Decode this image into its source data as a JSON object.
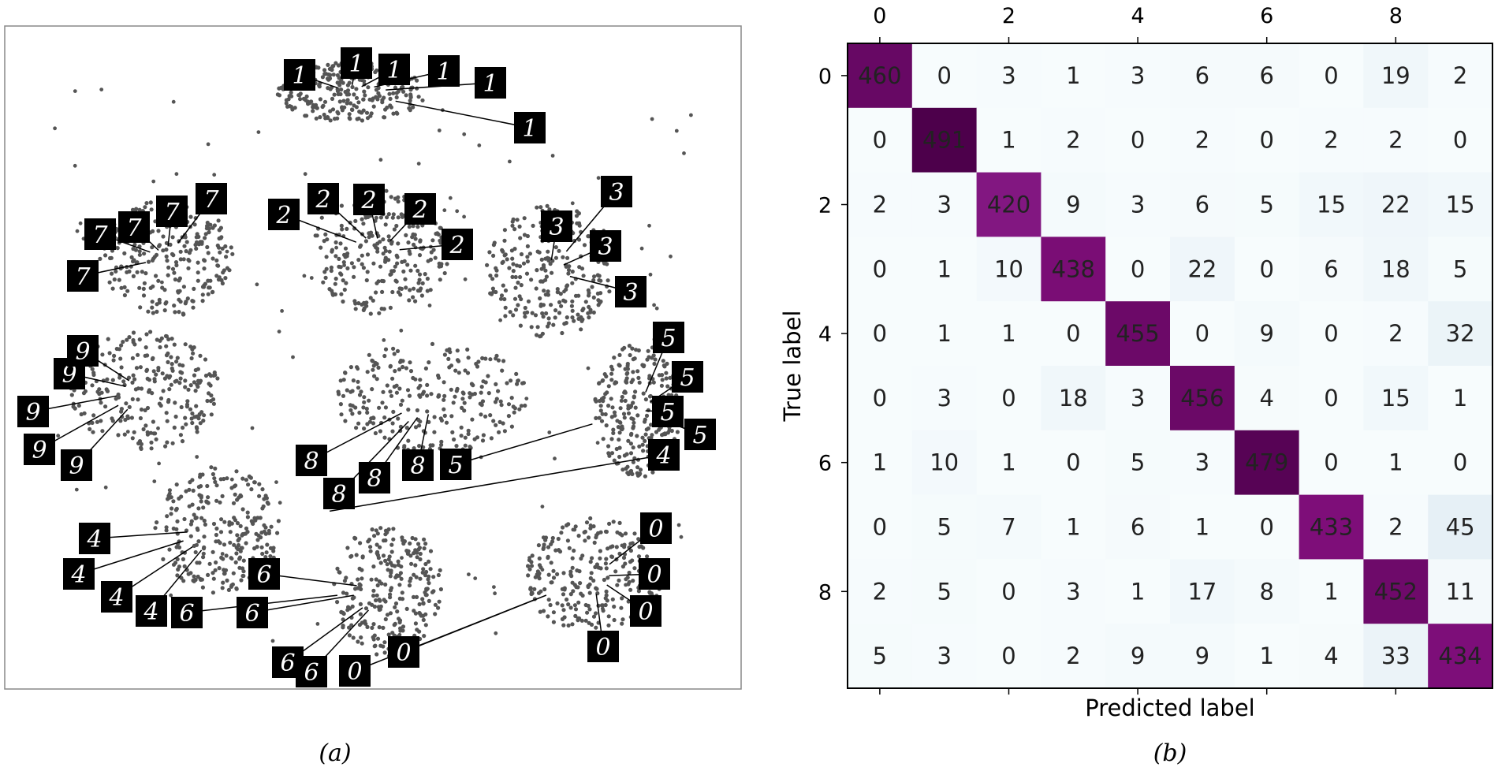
{
  "figure": {
    "caption_a": "(a)",
    "caption_b": "(b)"
  },
  "chart_data": [
    {
      "panel": "(a)",
      "type": "scatter",
      "title": "",
      "xlabel": "",
      "ylabel": "",
      "grid": false,
      "point_color": "#555555",
      "clusters": [
        {
          "label": "1",
          "x": 0.47,
          "y": 0.1
        },
        {
          "label": "7",
          "x": 0.22,
          "y": 0.35
        },
        {
          "label": "2",
          "x": 0.51,
          "y": 0.34
        },
        {
          "label": "3",
          "x": 0.74,
          "y": 0.37
        },
        {
          "label": "9",
          "x": 0.19,
          "y": 0.55
        },
        {
          "label": "8",
          "x": 0.58,
          "y": 0.56
        },
        {
          "label": "5",
          "x": 0.86,
          "y": 0.58
        },
        {
          "label": "4",
          "x": 0.29,
          "y": 0.76
        },
        {
          "label": "6",
          "x": 0.52,
          "y": 0.85
        },
        {
          "label": "0",
          "x": 0.8,
          "y": 0.83
        }
      ],
      "thumbnail_labels": [
        "1",
        "1",
        "1",
        "1",
        "1",
        "1",
        "7",
        "7",
        "7",
        "7",
        "7",
        "2",
        "2",
        "2",
        "2",
        "2",
        "3",
        "3",
        "3",
        "3",
        "9",
        "9",
        "9",
        "9",
        "9",
        "8",
        "8",
        "8",
        "8",
        "5",
        "5",
        "5",
        "5",
        "5",
        "4",
        "4",
        "4",
        "4",
        "4",
        "6",
        "6",
        "6",
        "6",
        "6",
        "0",
        "0",
        "0",
        "0",
        "0",
        "0"
      ]
    },
    {
      "panel": "(b)",
      "type": "heatmap",
      "title": "",
      "xlabel": "Predicted label",
      "ylabel": "True label",
      "x_ticks": [
        "0",
        "2",
        "4",
        "6",
        "8"
      ],
      "y_ticks": [
        "0",
        "2",
        "4",
        "6",
        "8"
      ],
      "classes": [
        0,
        1,
        2,
        3,
        4,
        5,
        6,
        7,
        8,
        9
      ],
      "colormap": "BuPu",
      "vmax": 491,
      "matrix": [
        [
          460,
          0,
          3,
          1,
          3,
          6,
          6,
          0,
          19,
          2
        ],
        [
          0,
          491,
          1,
          2,
          0,
          2,
          0,
          2,
          2,
          0
        ],
        [
          2,
          3,
          420,
          9,
          3,
          6,
          5,
          15,
          22,
          15
        ],
        [
          0,
          1,
          10,
          438,
          0,
          22,
          0,
          6,
          18,
          5
        ],
        [
          0,
          1,
          1,
          0,
          455,
          0,
          9,
          0,
          2,
          32
        ],
        [
          0,
          3,
          0,
          18,
          3,
          456,
          4,
          0,
          15,
          1
        ],
        [
          1,
          10,
          1,
          0,
          5,
          3,
          479,
          0,
          1,
          0
        ],
        [
          0,
          5,
          7,
          1,
          6,
          1,
          0,
          433,
          2,
          45
        ],
        [
          2,
          5,
          0,
          3,
          1,
          17,
          8,
          1,
          452,
          11
        ],
        [
          5,
          3,
          0,
          2,
          9,
          9,
          1,
          4,
          33,
          434
        ]
      ]
    }
  ]
}
